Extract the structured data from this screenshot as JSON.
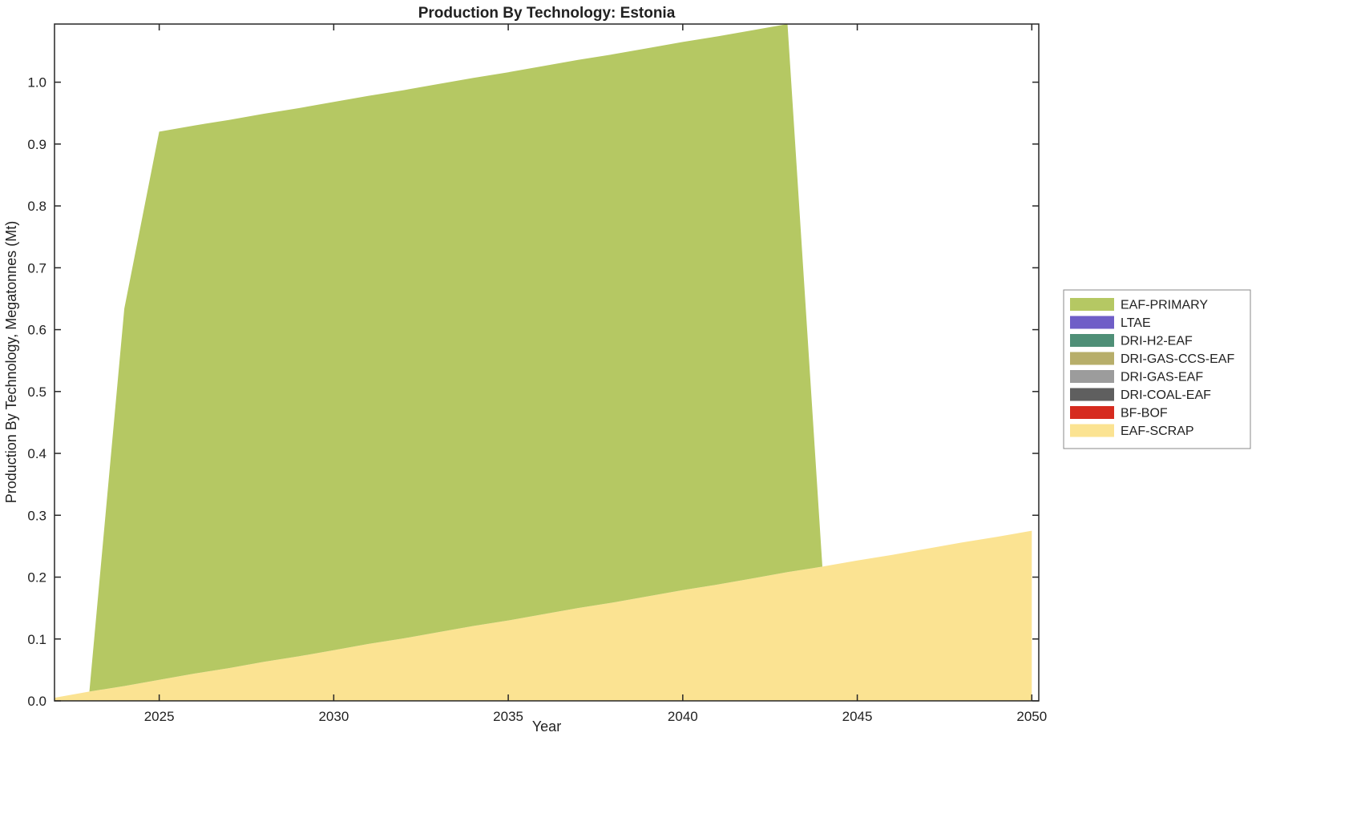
{
  "chart_data": {
    "type": "area",
    "stacked": true,
    "title": "Production By Technology: Estonia",
    "xlabel": "Year",
    "ylabel": "Production By Technology, Megatonnes (Mt)",
    "xlim": [
      2022,
      2050.2
    ],
    "ylim": [
      0,
      1.094
    ],
    "xticks": [
      2025,
      2030,
      2035,
      2040,
      2045,
      2050
    ],
    "yticks": [
      0.0,
      0.1,
      0.2,
      0.3,
      0.4,
      0.5,
      0.6,
      0.7,
      0.8,
      0.9,
      1.0
    ],
    "grid": false,
    "legend_position": "right-outside",
    "x": [
      2022,
      2023,
      2024,
      2025,
      2026,
      2027,
      2028,
      2029,
      2030,
      2031,
      2032,
      2033,
      2034,
      2035,
      2036,
      2037,
      2038,
      2039,
      2040,
      2041,
      2042,
      2043,
      2044,
      2045,
      2046,
      2047,
      2048,
      2049,
      2050
    ],
    "stack_note": "series listed in legend order (top of legend = top of stack); stacking drawn bottom-to-top in reverse of this list",
    "series": [
      {
        "name": "EAF-PRIMARY",
        "color": "#b5c863",
        "values": [
          0,
          0,
          0.61,
          0.886,
          0.886,
          0.886,
          0.886,
          0.886,
          0.886,
          0.886,
          0.886,
          0.886,
          0.886,
          0.886,
          0.886,
          0.886,
          0.886,
          0.886,
          0.886,
          0.886,
          0.886,
          0.886,
          0,
          0,
          0,
          0,
          0,
          0,
          0
        ]
      },
      {
        "name": "LTAE",
        "color": "#6f5ec7",
        "values": 0
      },
      {
        "name": "DRI-H2-EAF",
        "color": "#4f8f77",
        "values": 0
      },
      {
        "name": "DRI-GAS-CCS-EAF",
        "color": "#b7ae6a",
        "values": 0
      },
      {
        "name": "DRI-GAS-EAF",
        "color": "#9c9c9c",
        "values": 0
      },
      {
        "name": "DRI-COAL-EAF",
        "color": "#5f5f5f",
        "values": 0
      },
      {
        "name": "BF-BOF",
        "color": "#d62b1f",
        "values": 0
      },
      {
        "name": "EAF-SCRAP",
        "color": "#fbe392",
        "values": [
          0.005,
          0.015,
          0.024,
          0.034,
          0.044,
          0.053,
          0.063,
          0.072,
          0.082,
          0.092,
          0.101,
          0.111,
          0.121,
          0.13,
          0.14,
          0.15,
          0.159,
          0.169,
          0.179,
          0.188,
          0.198,
          0.208,
          0.217,
          0.227,
          0.236,
          0.246,
          0.256,
          0.265,
          0.275
        ]
      }
    ]
  }
}
